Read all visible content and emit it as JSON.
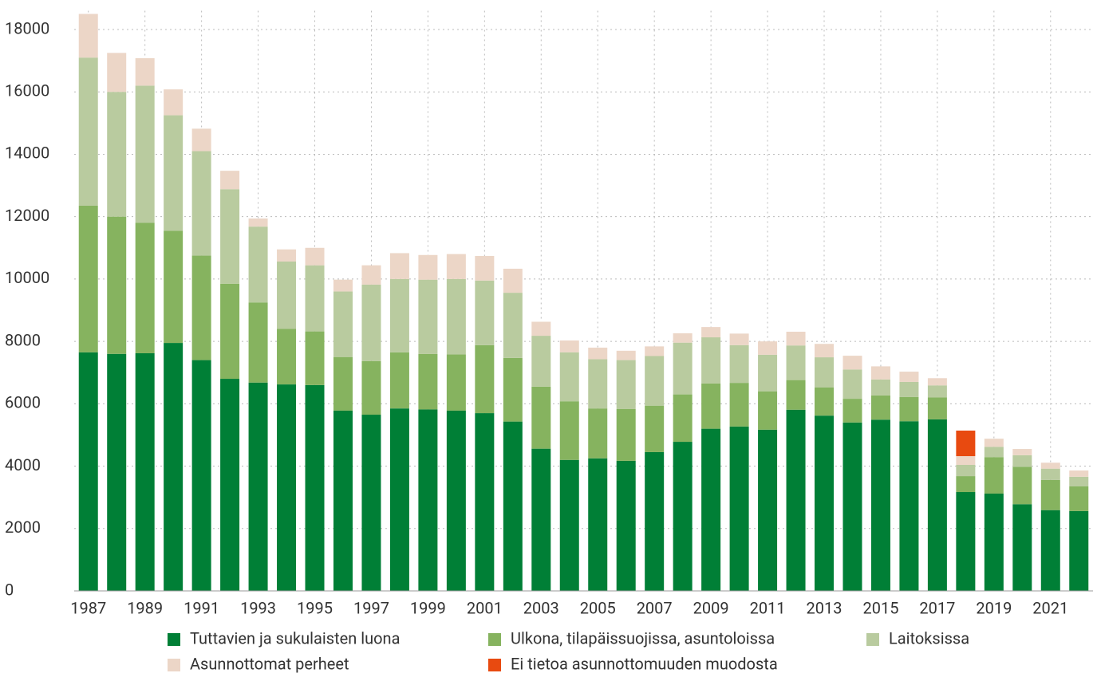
{
  "chart_data": {
    "type": "stacked_bar",
    "categories": [
      "1987",
      null,
      "1989",
      null,
      "1991",
      null,
      "1993",
      null,
      "1995",
      null,
      "1997",
      null,
      "1999",
      null,
      "2001",
      null,
      "2003",
      null,
      "2005",
      null,
      "2007",
      null,
      "2009",
      null,
      "2011",
      null,
      "2013",
      null,
      "2015",
      null,
      "2017",
      null,
      "2019",
      null,
      "2021",
      null
    ],
    "series": [
      {
        "name": "Tuttavien ja sukulaisten luona",
        "color": "#007f36",
        "values": [
          7650,
          7600,
          7620,
          7950,
          7400,
          6800,
          6680,
          6620,
          6600,
          5780,
          5650,
          5850,
          5820,
          5780,
          5700,
          5430,
          4560,
          4200,
          4250,
          4170,
          4450,
          4780,
          5200,
          5270,
          5170,
          5810,
          5620,
          5400,
          5490,
          5440,
          5500,
          3170,
          3120,
          2780,
          2590,
          2560
        ]
      },
      {
        "name": "Ulkona, tilapäissuojissa, asuntoloissa",
        "color": "#86b35f",
        "values": [
          4700,
          4400,
          4180,
          3600,
          3350,
          3050,
          2570,
          1780,
          1720,
          1720,
          1720,
          1800,
          1780,
          1800,
          2180,
          2040,
          1990,
          1880,
          1600,
          1660,
          1490,
          1520,
          1450,
          1400,
          1230,
          950,
          900,
          760,
          780,
          780,
          700,
          510,
          1170,
          1200,
          970,
          790
        ]
      },
      {
        "name": "Laitoksissa",
        "color": "#b9cb9f",
        "values": [
          4750,
          4000,
          4400,
          3700,
          3350,
          3030,
          2430,
          2160,
          2120,
          2100,
          2450,
          2350,
          2380,
          2420,
          2070,
          2090,
          1630,
          1570,
          1580,
          1570,
          1590,
          1660,
          1480,
          1210,
          1170,
          1110,
          970,
          940,
          510,
          480,
          390,
          360,
          330,
          370,
          360,
          310
        ]
      },
      {
        "name": "Asunnottomat perheet",
        "color": "#ecd6c7",
        "values": [
          1400,
          1250,
          880,
          830,
          720,
          590,
          260,
          390,
          560,
          380,
          620,
          830,
          790,
          800,
          790,
          770,
          450,
          380,
          370,
          300,
          310,
          300,
          330,
          370,
          430,
          440,
          430,
          440,
          420,
          330,
          230,
          280,
          260,
          200,
          190,
          200
        ]
      },
      {
        "name": "Ei tietoa asunnottomuuden muodosta",
        "color": "#e84a10",
        "values": [
          null,
          null,
          null,
          null,
          null,
          null,
          null,
          null,
          null,
          null,
          null,
          null,
          null,
          null,
          null,
          null,
          null,
          null,
          null,
          null,
          null,
          null,
          null,
          null,
          null,
          null,
          null,
          null,
          null,
          null,
          null,
          820,
          null,
          null,
          null,
          null
        ]
      }
    ],
    "ylim": [
      0,
      18600
    ],
    "yticks": [
      0,
      2000,
      4000,
      6000,
      8000,
      10000,
      12000,
      14000,
      16000,
      18000
    ],
    "grid": true
  }
}
